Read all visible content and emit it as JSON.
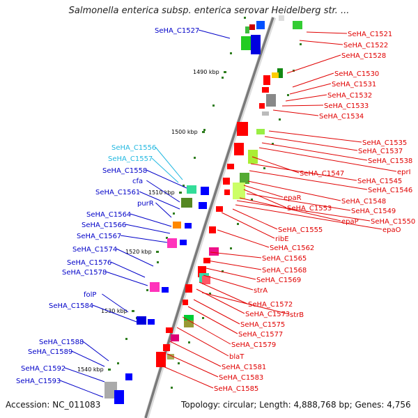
{
  "title": "Salmonella enterica subsp. enterica serovar Heidelberg str. ...",
  "footer": {
    "accession": "Accession: NC_011083",
    "topology": "Topology: circular; Length: 4,888,768 bp; Genes: 4,756"
  },
  "colors": {
    "backbone": "#7a7a7a",
    "tick": "#2e7d1e",
    "label_right": "#e00000",
    "label_left": "#0000c8",
    "label_cyan": "#22b8e0",
    "label_black": "#000000"
  },
  "scale_labels": [
    "1490 kbp",
    "1500 kbp",
    "1510 kbp",
    "1520 kbp",
    "1530 kbp",
    "1540 kbp"
  ],
  "right_labels": [
    "SeHA_C1521",
    "SeHA_C1522",
    "SeHA_C1528",
    "SeHA_C1530",
    "SeHA_C1531",
    "SeHA_C1532",
    "SeHA_C1533",
    "SeHA_C1534",
    "SeHA_C1535",
    "SeHA_C1537",
    "SeHA_C1538",
    "eprI",
    "SeHA_C1547",
    "SeHA_C1545",
    "SeHA_C1546",
    "SeHA_C1548",
    "epaR",
    "SeHA_C1553",
    "SeHA_C1549",
    "epaP",
    "SeHA_C1550",
    "epaO",
    "SeHA_C1555",
    "ribE",
    "SeHA_C1562",
    "SeHA_C1565",
    "SeHA_C1568",
    "SeHA_C1569",
    "strA",
    "SeHA_C1572",
    "SeHA_C1573",
    "strB",
    "SeHA_C1575",
    "SeHA_C1577",
    "SeHA_C1579",
    "blaT",
    "SeHA_C1581",
    "SeHA_C1583",
    "SeHA_C1585"
  ],
  "left_labels": [
    "SeHA_C1527",
    "SeHA_C1556",
    "SeHA_C1557",
    "SeHA_C1558",
    "cfa",
    "SeHA_C1561",
    "purR",
    "SeHA_C1564",
    "SeHA_C1566",
    "SeHA_C1567",
    "SeHA_C1574",
    "SeHA_C1576",
    "SeHA_C1578",
    "folP",
    "SeHA_C1584",
    "SeHA_C1588",
    "SeHA_C1589",
    "SeHA_C1592",
    "SeHA_C1593"
  ]
}
